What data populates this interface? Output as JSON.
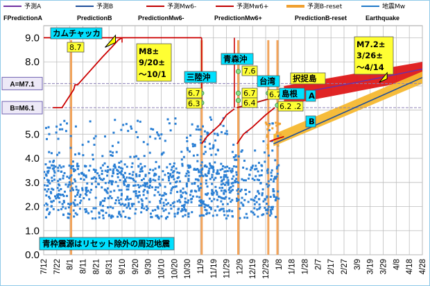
{
  "chart_data": {
    "type": "scatter",
    "title": "",
    "xlabel": "",
    "ylabel": "",
    "ylim": [
      0,
      9.5
    ],
    "y_ticks": [
      "0.0",
      "1.0",
      "2.0",
      "3.0",
      "4.0",
      "5.0",
      "6.0",
      "7.0",
      "8.0",
      "9.0"
    ],
    "x_tick_labels": [
      "7/12",
      "7/22",
      "8/1",
      "8/11",
      "8/21",
      "8/31",
      "9/10",
      "9/20",
      "9/30",
      "10/10",
      "10/20",
      "10/30",
      "11/9",
      "11/19",
      "11/29",
      "12/9",
      "12/19",
      "12/29",
      "1/8",
      "1/18",
      "1/28",
      "2/7",
      "2/17",
      "2/27",
      "3/9",
      "3/19",
      "3/29",
      "4/8",
      "4/18",
      "4/28"
    ],
    "x_range_days": [
      0,
      290
    ],
    "legend": {
      "row1": [
        {
          "name": "予測A",
          "color": "#7030a0"
        },
        {
          "name": "予測B",
          "color": "#1f4e9a"
        },
        {
          "name": "予測Mw6-",
          "color": "#c00000"
        },
        {
          "name": "予測Mw6+",
          "color": "#c00000"
        },
        {
          "name": "予測B-reset",
          "color": "#f0a030"
        },
        {
          "name": "地震Mw",
          "color": "#1f78c8"
        }
      ],
      "row2": [
        "FPredictionA",
        "PredictionB",
        "PredictionMw6-",
        "PredictionMw6+",
        "PredictionB-reset",
        "Earthquake"
      ]
    },
    "thresholds": [
      {
        "label": "A=M7.1",
        "value": 7.1
      },
      {
        "label": "B=M6.1",
        "value": 6.1
      }
    ],
    "series": [
      {
        "name": "予測Mw6- (red stepped ramp 1)",
        "color": "#cc0000",
        "points": [
          [
            7,
            6.1
          ],
          [
            14,
            6.1
          ],
          [
            23,
            6.85
          ],
          [
            24,
            7.05
          ],
          [
            26,
            7.05
          ],
          [
            45,
            8.2
          ],
          [
            52,
            8.6
          ],
          [
            57,
            8.9
          ],
          [
            60,
            9.0
          ]
        ]
      },
      {
        "name": "予測Mw6- (red ramp 2)",
        "color": "#cc0000",
        "points": [
          [
            121,
            4.6
          ],
          [
            125,
            4.9
          ],
          [
            135,
            5.4
          ],
          [
            140,
            5.8
          ],
          [
            146,
            6.05
          ]
        ]
      },
      {
        "name": "予測Mw6- (red ramp 3)",
        "color": "#cc0000",
        "points": [
          [
            148,
            4.6
          ],
          [
            153,
            5.0
          ],
          [
            160,
            5.3
          ],
          [
            170,
            5.8
          ],
          [
            177,
            6.1
          ]
        ]
      },
      {
        "name": "予測Mw6+ (dark red line)",
        "color": "#b00000",
        "points": [
          [
            148,
            6.1
          ],
          [
            175,
            6.5
          ],
          [
            180,
            6.6
          ],
          [
            184,
            6.6
          ]
        ]
      },
      {
        "name": "予測Mw6+ upper cap",
        "color": "#cc0000",
        "points": [
          [
            0,
            9.0
          ],
          [
            121,
            9.0
          ]
        ]
      },
      {
        "name": "予測Mw6- step ramp 4",
        "color": "#cc0000",
        "points": [
          [
            173,
            4.7
          ],
          [
            178,
            4.8
          ],
          [
            184,
            4.9
          ]
        ]
      },
      {
        "name": "予測A (purple trend)",
        "color": "#7030a0",
        "points": [
          [
            184,
            6.6
          ],
          [
            240,
            7.15
          ],
          [
            290,
            7.7
          ]
        ]
      },
      {
        "name": "予測B (blue trend)",
        "color": "#1f4e9a",
        "points": [
          [
            176,
            4.6
          ],
          [
            290,
            7.35
          ]
        ]
      }
    ],
    "bands": [
      {
        "name": "予測Mw6+ band",
        "color": "#dd1111",
        "lower": [
          [
            184,
            6.2
          ],
          [
            290,
            7.3
          ]
        ],
        "upper": [
          [
            184,
            7.0
          ],
          [
            290,
            8.0
          ]
        ]
      },
      {
        "name": "予測B-reset band",
        "color": "#f5b830",
        "lower": [
          [
            176,
            4.5
          ],
          [
            290,
            7.1
          ]
        ],
        "upper": [
          [
            176,
            5.0
          ],
          [
            290,
            7.6
          ]
        ]
      }
    ],
    "earthquake_marks": [
      {
        "label": "8.7",
        "x": 21,
        "value": 8.7
      },
      {
        "label": "6.7",
        "x": 121,
        "value": 6.7
      },
      {
        "label": "6.3",
        "x": 121,
        "value": 6.3
      },
      {
        "label": "7.6",
        "x": 149,
        "value": 7.6
      },
      {
        "label": "6.7",
        "x": 149,
        "value": 6.7
      },
      {
        "label": "6.4",
        "x": 149,
        "value": 6.4
      },
      {
        "label": "6.7",
        "x": 172,
        "value": 6.7
      },
      {
        "label": "6.2",
        "x": 179,
        "value": 6.2
      }
    ],
    "vertical_lines_days": [
      21,
      121,
      149,
      172,
      179
    ],
    "annotations": [
      {
        "text": "カムチャッカ"
      },
      {
        "text": "8.7"
      },
      {
        "text": "M8±"
      },
      {
        "text": "9/20±"
      },
      {
        "text": "～10/1"
      },
      {
        "text": "三陸沖"
      },
      {
        "text": "6.7"
      },
      {
        "text": "6.3"
      },
      {
        "text": "青森沖"
      },
      {
        "text": "7.6"
      },
      {
        "text": "6.7"
      },
      {
        "text": "6.4"
      },
      {
        "text": "台湾"
      },
      {
        "text": "6.7"
      },
      {
        "text": "島根"
      },
      {
        "text": "6.2 .2"
      },
      {
        "text": "択捉島"
      },
      {
        "text": "A"
      },
      {
        "text": "B"
      },
      {
        "text": "M7.2±"
      },
      {
        "text": "3/26±"
      },
      {
        "text": "～4/14"
      }
    ],
    "note": "青枠震源はリセット除外の周辺地震",
    "scatter_summary": "Dense cloud of small earthquake markers (blue squares) between magnitude about 1.5 and 5.5 from 7/12 to 1/10"
  }
}
